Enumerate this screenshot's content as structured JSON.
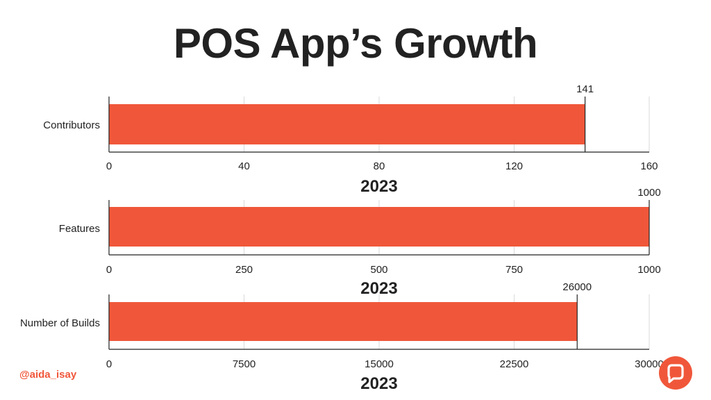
{
  "title": "POS App’s Growth",
  "handle": "@aida_isay",
  "colors": {
    "bar": "#f0573a",
    "logo": "#f0573a",
    "text": "#222222",
    "grid": "#d9d9d9"
  },
  "logo_icon": "chat-bubble-logo-icon",
  "chart_data": [
    {
      "type": "bar",
      "orientation": "horizontal",
      "categories": [
        "Contributors"
      ],
      "values": [
        141
      ],
      "data_labels": [
        "141"
      ],
      "xlabel": "2023",
      "xlim": [
        0,
        160
      ],
      "xticks": [
        0,
        40,
        80,
        120,
        160
      ],
      "grid": true
    },
    {
      "type": "bar",
      "orientation": "horizontal",
      "categories": [
        "Features"
      ],
      "values": [
        1000
      ],
      "data_labels": [
        "1000"
      ],
      "xlabel": "2023",
      "xlim": [
        0,
        1000
      ],
      "xticks": [
        0,
        250,
        500,
        750,
        1000
      ],
      "grid": true
    },
    {
      "type": "bar",
      "orientation": "horizontal",
      "categories": [
        "Number of Builds"
      ],
      "values": [
        26000
      ],
      "data_labels": [
        "26000"
      ],
      "xlabel": "2023",
      "xlim": [
        0,
        30000
      ],
      "xticks": [
        0,
        7500,
        15000,
        22500,
        30000
      ],
      "grid": true
    }
  ]
}
